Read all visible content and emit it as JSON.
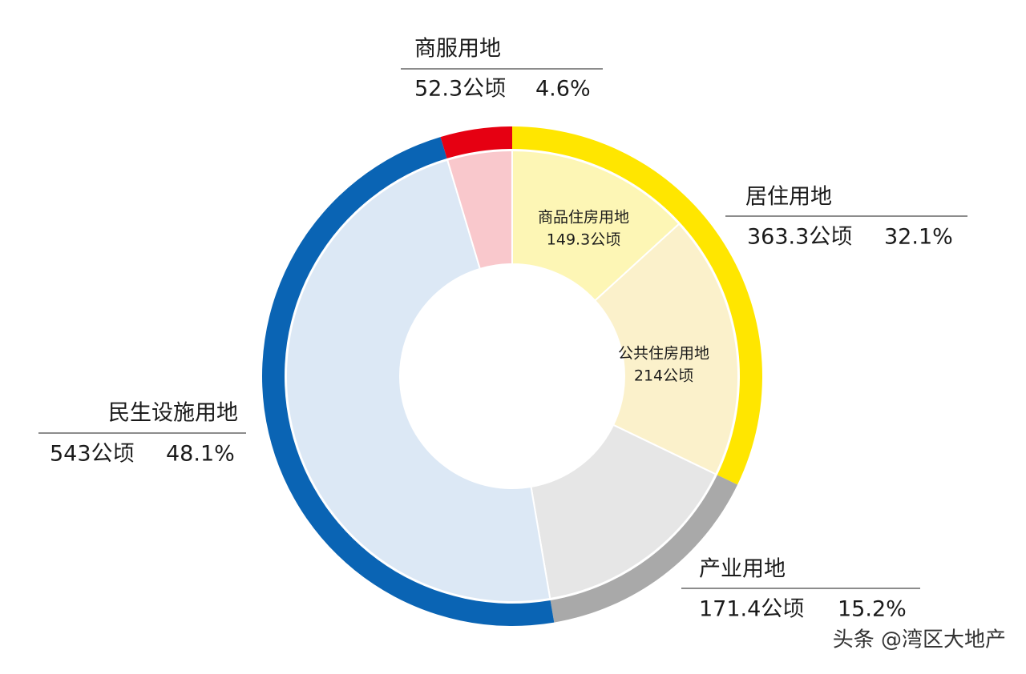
{
  "chart_data": {
    "type": "sunburst",
    "categories": [
      "居住用地",
      "产业用地",
      "民生设施用地",
      "商服用地"
    ],
    "values": [
      363.3,
      171.4,
      543,
      52.3
    ],
    "value_labels": [
      "363.3公顷",
      "171.4公顷",
      "543公顷",
      "52.3公顷"
    ],
    "percents": [
      32.1,
      15.2,
      48.1,
      4.6
    ],
    "percent_labels": [
      "32.1%",
      "15.2%",
      "48.1%",
      "4.6%"
    ],
    "colors": [
      "#ffe600",
      "#a9a9a9",
      "#0a64b4",
      "#e60012"
    ],
    "inner_colors": [
      "#fdf4ad",
      "#e6e6e6",
      "#dce8f5",
      "#f9c8cc"
    ],
    "sub": {
      "parent": 0,
      "names": [
        "商品住房用地",
        "公共住房用地"
      ],
      "values": [
        149.3,
        214
      ],
      "value_labels": [
        "149.3公顷",
        "214公顷"
      ],
      "colors": [
        "#fdf6b5",
        "#fbf1cb"
      ]
    },
    "watermark": "头条 @湾区大地产"
  }
}
